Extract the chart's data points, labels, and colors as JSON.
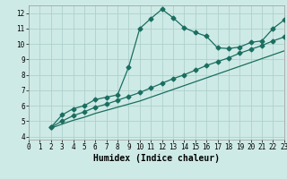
{
  "xlabel": "Humidex (Indice chaleur)",
  "bg_color": "#ceeae6",
  "grid_color": "#aed0cc",
  "line_color": "#1a6e60",
  "xlim": [
    0,
    23
  ],
  "ylim": [
    3.8,
    12.5
  ],
  "xticks": [
    0,
    1,
    2,
    3,
    4,
    5,
    6,
    7,
    8,
    9,
    10,
    11,
    12,
    13,
    14,
    15,
    16,
    17,
    18,
    19,
    20,
    21,
    22,
    23
  ],
  "yticks": [
    4,
    5,
    6,
    7,
    8,
    9,
    10,
    11,
    12
  ],
  "line1_x": [
    2,
    3,
    4,
    5,
    6,
    7,
    8,
    9,
    10,
    11,
    12,
    13,
    14,
    15,
    16,
    17,
    18,
    19,
    20,
    21,
    22,
    23
  ],
  "line1_y": [
    4.6,
    5.4,
    5.8,
    6.0,
    6.4,
    6.55,
    6.7,
    8.5,
    11.0,
    11.65,
    12.25,
    11.7,
    11.05,
    10.75,
    10.5,
    9.75,
    9.7,
    9.8,
    10.1,
    10.2,
    11.0,
    11.55
  ],
  "line2_x": [
    2,
    3,
    4,
    5,
    6,
    7,
    8,
    9,
    10,
    11,
    12,
    13,
    14,
    15,
    16,
    17,
    18,
    19,
    20,
    21,
    22,
    23
  ],
  "line2_y": [
    4.6,
    5.0,
    5.35,
    5.6,
    5.9,
    6.1,
    6.35,
    6.6,
    6.85,
    7.15,
    7.45,
    7.75,
    8.0,
    8.3,
    8.6,
    8.85,
    9.1,
    9.4,
    9.65,
    9.9,
    10.2,
    10.45
  ],
  "line3_x": [
    2,
    3,
    4,
    5,
    6,
    7,
    8,
    9,
    10,
    11,
    12,
    13,
    14,
    15,
    16,
    17,
    18,
    19,
    20,
    21,
    22,
    23
  ],
  "line3_y": [
    4.55,
    4.8,
    5.05,
    5.25,
    5.5,
    5.7,
    5.9,
    6.1,
    6.3,
    6.55,
    6.8,
    7.05,
    7.3,
    7.55,
    7.8,
    8.05,
    8.3,
    8.55,
    8.8,
    9.05,
    9.3,
    9.55
  ],
  "marker_style": "D",
  "marker_size": 2.5,
  "line_width": 0.9,
  "xlabel_fontsize": 7,
  "tick_fontsize": 5.5
}
